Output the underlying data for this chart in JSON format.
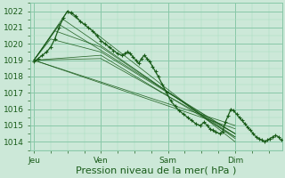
{
  "bg_color": "#cce8d8",
  "grid_major_color": "#88c8a8",
  "grid_minor_color": "#aaddc0",
  "line_color": "#1a5c1a",
  "ylabel_ticks": [
    1014,
    1015,
    1016,
    1017,
    1018,
    1019,
    1020,
    1021,
    1022
  ],
  "ylim": [
    1013.5,
    1022.5
  ],
  "xlabel": "Pression niveau de la mer( hPa )",
  "day_labels": [
    "Jeu",
    "Ven",
    "Sam",
    "Dim"
  ],
  "day_positions": [
    0,
    96,
    192,
    288
  ],
  "xlim": [
    -5,
    355
  ],
  "tick_fontsize": 6.5,
  "xlabel_fontsize": 8,
  "main_line": [
    [
      0,
      1018.9
    ],
    [
      6,
      1019.1
    ],
    [
      12,
      1019.3
    ],
    [
      18,
      1019.5
    ],
    [
      24,
      1019.8
    ],
    [
      30,
      1020.3
    ],
    [
      36,
      1021.0
    ],
    [
      42,
      1021.6
    ],
    [
      48,
      1022.0
    ],
    [
      54,
      1021.9
    ],
    [
      60,
      1021.7
    ],
    [
      66,
      1021.4
    ],
    [
      72,
      1021.2
    ],
    [
      78,
      1021.0
    ],
    [
      84,
      1020.8
    ],
    [
      90,
      1020.5
    ],
    [
      96,
      1020.2
    ],
    [
      102,
      1020.0
    ],
    [
      108,
      1019.8
    ],
    [
      114,
      1019.6
    ],
    [
      120,
      1019.4
    ],
    [
      126,
      1019.3
    ],
    [
      130,
      1019.4
    ],
    [
      134,
      1019.5
    ],
    [
      138,
      1019.4
    ],
    [
      142,
      1019.2
    ],
    [
      146,
      1019.0
    ],
    [
      150,
      1018.8
    ],
    [
      154,
      1019.1
    ],
    [
      158,
      1019.3
    ],
    [
      162,
      1019.1
    ],
    [
      166,
      1018.9
    ],
    [
      170,
      1018.6
    ],
    [
      174,
      1018.3
    ],
    [
      178,
      1018.0
    ],
    [
      184,
      1017.5
    ],
    [
      190,
      1017.0
    ],
    [
      196,
      1016.5
    ],
    [
      202,
      1016.2
    ],
    [
      208,
      1015.9
    ],
    [
      214,
      1015.7
    ],
    [
      220,
      1015.5
    ],
    [
      226,
      1015.3
    ],
    [
      232,
      1015.1
    ],
    [
      238,
      1015.0
    ],
    [
      244,
      1015.2
    ],
    [
      248,
      1015.0
    ],
    [
      252,
      1014.8
    ],
    [
      256,
      1014.7
    ],
    [
      260,
      1014.6
    ],
    [
      266,
      1014.5
    ],
    [
      270,
      1014.6
    ],
    [
      274,
      1015.2
    ],
    [
      278,
      1015.6
    ],
    [
      282,
      1016.0
    ],
    [
      286,
      1015.9
    ],
    [
      290,
      1015.7
    ],
    [
      294,
      1015.5
    ],
    [
      298,
      1015.3
    ],
    [
      302,
      1015.1
    ],
    [
      306,
      1014.9
    ],
    [
      310,
      1014.7
    ],
    [
      314,
      1014.5
    ],
    [
      318,
      1014.3
    ],
    [
      322,
      1014.2
    ],
    [
      326,
      1014.1
    ],
    [
      330,
      1014.0
    ],
    [
      334,
      1014.1
    ],
    [
      338,
      1014.2
    ],
    [
      342,
      1014.3
    ],
    [
      346,
      1014.4
    ],
    [
      350,
      1014.3
    ],
    [
      354,
      1014.1
    ]
  ],
  "fan_lines": [
    [
      [
        0,
        1019.0
      ],
      [
        48,
        1022.0
      ],
      [
        288,
        1014.0
      ]
    ],
    [
      [
        0,
        1019.0
      ],
      [
        42,
        1021.5
      ],
      [
        288,
        1014.2
      ]
    ],
    [
      [
        0,
        1019.0
      ],
      [
        36,
        1021.2
      ],
      [
        288,
        1014.5
      ]
    ],
    [
      [
        0,
        1019.0
      ],
      [
        30,
        1020.8
      ],
      [
        96,
        1019.8
      ],
      [
        288,
        1014.3
      ]
    ],
    [
      [
        0,
        1019.0
      ],
      [
        24,
        1020.3
      ],
      [
        96,
        1019.5
      ],
      [
        288,
        1014.5
      ]
    ],
    [
      [
        0,
        1019.0
      ],
      [
        96,
        1019.3
      ],
      [
        288,
        1014.3
      ]
    ],
    [
      [
        0,
        1019.0
      ],
      [
        96,
        1019.1
      ],
      [
        288,
        1014.5
      ]
    ],
    [
      [
        0,
        1019.0
      ],
      [
        288,
        1014.8
      ]
    ],
    [
      [
        0,
        1019.0
      ],
      [
        288,
        1015.0
      ]
    ]
  ]
}
